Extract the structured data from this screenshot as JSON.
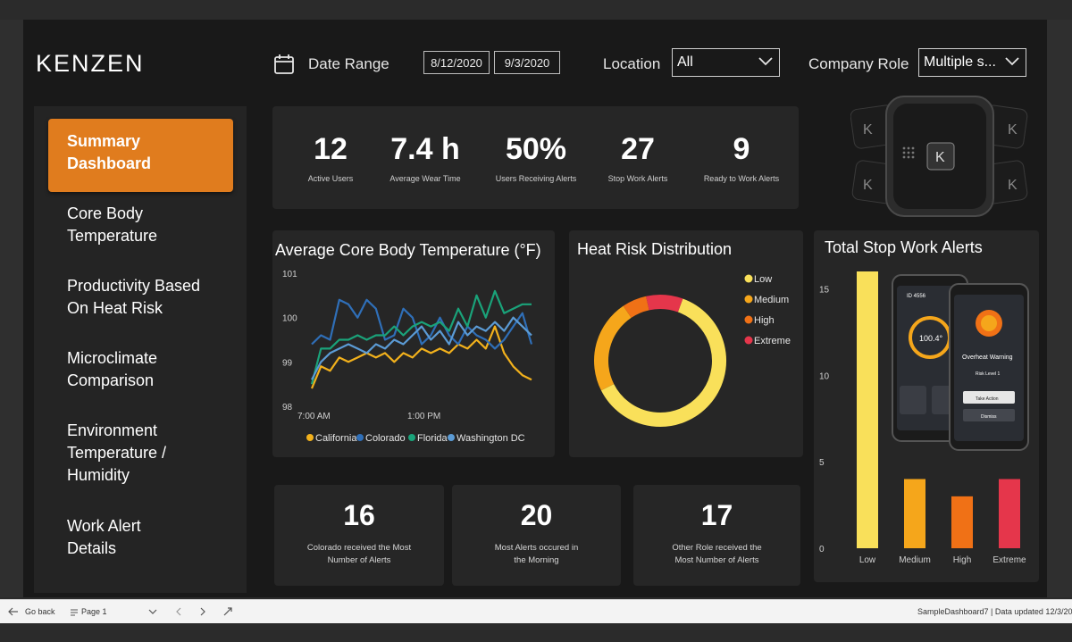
{
  "app": {
    "logo_text": "KENZEN"
  },
  "filters": {
    "date_range_label": "Date Range",
    "date_start": "8/12/2020",
    "date_end": "9/3/2020",
    "location_label": "Location",
    "location_value": "All",
    "company_role_label": "Company Role",
    "company_role_value": "Multiple s..."
  },
  "sidebar": {
    "items": [
      {
        "label": "Summary\nDashboard",
        "active": true
      },
      {
        "label": "Core Body\nTemperature",
        "active": false
      },
      {
        "label": "Productivity Based\nOn Heat Risk",
        "active": false
      },
      {
        "label": "Microclimate\nComparison",
        "active": false
      },
      {
        "label": "Environment\nTemperature /\nHumidity",
        "active": false
      },
      {
        "label": "Work Alert\nDetails",
        "active": false
      }
    ]
  },
  "kpis": [
    {
      "value": "12",
      "label": "Active Users"
    },
    {
      "value": "7.4 h",
      "label": "Average Wear Time"
    },
    {
      "value": "50%",
      "label": "Users Receiving Alerts"
    },
    {
      "value": "27",
      "label": "Stop Work Alerts"
    },
    {
      "value": "9",
      "label": "Ready to Work Alerts"
    }
  ],
  "summary_cards": [
    {
      "value": "16",
      "caption": "Colorado received the Most\nNumber of Alerts"
    },
    {
      "value": "20",
      "caption": "Most Alerts occured in\nthe Morning"
    },
    {
      "value": "17",
      "caption": "Other Role received the\nMost Number of Alerts"
    }
  ],
  "phone_mockup": {
    "temp_reading": "100.4°",
    "user_id": "ID 4556",
    "warning_title": "Overheat Warning",
    "risk_level": "Risk Level 1",
    "action_button": "Take Action",
    "dismiss_button": "Dismiss"
  },
  "footer": {
    "go_back": "Go back",
    "page": "Page 1",
    "status": "SampleDashboard7 | Data updated 12/3/20"
  },
  "colors": {
    "accent": "#e07c1e",
    "california": "#f2b11c",
    "colorado": "#2f6fb8",
    "florida": "#1aa37a",
    "washington_dc": "#5b9bd5",
    "low": "#f9e05a",
    "medium": "#f5a61b",
    "high": "#f07116",
    "extreme": "#e5364b"
  },
  "chart_data": [
    {
      "type": "line",
      "title": "Average Core Body Temperature (°F)",
      "ylim": [
        98,
        101
      ],
      "y_ticks": [
        "101",
        "100",
        "99",
        "98"
      ],
      "x_tick_labels": [
        "7:00 AM",
        "1:00 PM"
      ],
      "x": [
        0,
        1,
        2,
        3,
        4,
        5,
        6,
        7,
        8,
        9,
        10,
        11,
        12,
        13,
        14,
        15,
        16,
        17,
        18,
        19,
        20,
        21,
        22,
        23,
        24
      ],
      "series": [
        {
          "name": "California",
          "values": [
            98.4,
            98.9,
            98.8,
            99.1,
            99.0,
            99.1,
            99.2,
            99.1,
            99.2,
            99.0,
            99.2,
            99.1,
            99.3,
            99.2,
            99.3,
            99.2,
            99.4,
            99.3,
            99.5,
            99.3,
            99.8,
            99.2,
            98.9,
            98.7,
            98.6
          ]
        },
        {
          "name": "Colorado",
          "values": [
            99.4,
            99.6,
            99.5,
            100.4,
            100.3,
            100.0,
            100.4,
            100.2,
            99.5,
            99.6,
            100.2,
            100.0,
            99.4,
            99.6,
            100.0,
            99.6,
            99.4,
            99.8,
            99.6,
            99.5,
            99.3,
            99.5,
            99.8,
            100.1,
            99.4
          ]
        },
        {
          "name": "Florida",
          "values": [
            98.5,
            99.3,
            99.3,
            99.5,
            99.5,
            99.6,
            99.5,
            99.6,
            99.6,
            99.8,
            99.6,
            99.8,
            99.9,
            99.8,
            99.9,
            99.7,
            100.2,
            99.8,
            100.5,
            100.0,
            100.6,
            100.1,
            100.2,
            100.3,
            100.3
          ]
        },
        {
          "name": "Washington DC",
          "values": [
            98.6,
            99.0,
            99.2,
            99.3,
            99.4,
            99.3,
            99.2,
            99.4,
            99.3,
            99.5,
            99.4,
            99.6,
            99.8,
            99.5,
            99.7,
            99.4,
            99.9,
            99.6,
            99.8,
            99.7,
            99.9,
            99.7,
            100.0,
            99.8,
            99.6
          ]
        }
      ]
    },
    {
      "type": "pie",
      "title": "Heat Risk Distribution",
      "categories": [
        "Low",
        "Medium",
        "High",
        "Extreme"
      ],
      "values": [
        62,
        23,
        6,
        9
      ]
    },
    {
      "type": "bar",
      "title": "Total Stop Work Alerts",
      "categories": [
        "Low",
        "Medium",
        "High",
        "Extreme"
      ],
      "values": [
        16,
        4,
        3,
        4
      ],
      "ylim": [
        0,
        16
      ],
      "y_ticks": [
        0,
        5,
        10,
        15
      ]
    }
  ]
}
